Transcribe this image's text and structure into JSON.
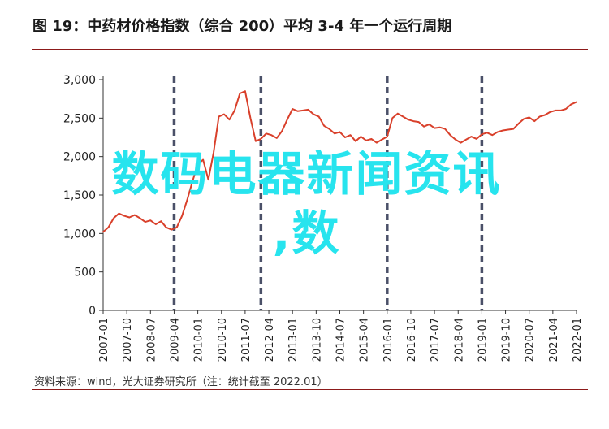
{
  "title": "图 19：中药材价格指数（综合 200）平均 3-4 年一个运行周期",
  "source": "资料来源：wind，光大证券研究所（注：统计截至 2022.01）",
  "watermark": {
    "line1": "数码电器新闻资讯",
    "line2": ",数"
  },
  "colors": {
    "line": "#d9402b",
    "divider": "#4a5068",
    "axis": "#333333",
    "accent_rule": "#8c1a1a",
    "watermark": "#27e4ee"
  },
  "chart_data": {
    "type": "line",
    "title": "",
    "xlabel": "",
    "ylabel": "",
    "ylim": [
      0,
      3000
    ],
    "yticks": [
      0,
      500,
      1000,
      1500,
      2000,
      2500,
      3000
    ],
    "ytick_labels": [
      "0",
      "500",
      "1,000",
      "1,500",
      "2,000",
      "2,500",
      "3,000"
    ],
    "xlim": [
      "2007-01",
      "2022-01"
    ],
    "xtick_labels": [
      "2007-01",
      "2007-10",
      "2008-07",
      "2009-04",
      "2010-01",
      "2010-10",
      "2011-07",
      "2012-04",
      "2013-01",
      "2013-10",
      "2014-07",
      "2015-04",
      "2016-01",
      "2016-10",
      "2017-07",
      "2018-04",
      "2019-01",
      "2019-10",
      "2020-07",
      "2021-04",
      "2022-01"
    ],
    "cycle_dividers": [
      "2009-04",
      "2012-01",
      "2016-01",
      "2019-01"
    ],
    "grid": false,
    "series": [
      {
        "x": [
          "2007-01",
          "2007-03",
          "2007-05",
          "2007-07",
          "2007-09",
          "2007-11",
          "2008-01",
          "2008-03",
          "2008-05",
          "2008-07",
          "2008-09",
          "2008-11",
          "2009-01",
          "2009-03",
          "2009-05",
          "2009-07",
          "2009-09",
          "2009-11",
          "2010-01",
          "2010-03",
          "2010-05",
          "2010-07",
          "2010-09",
          "2010-11",
          "2011-01",
          "2011-03",
          "2011-05",
          "2011-07",
          "2011-09",
          "2011-11",
          "2012-01",
          "2012-03",
          "2012-05",
          "2012-07",
          "2012-09",
          "2012-11",
          "2013-01",
          "2013-03",
          "2013-05",
          "2013-07",
          "2013-09",
          "2013-11",
          "2014-01",
          "2014-03",
          "2014-05",
          "2014-07",
          "2014-09",
          "2014-11",
          "2015-01",
          "2015-03",
          "2015-05",
          "2015-07",
          "2015-09",
          "2015-11",
          "2016-01",
          "2016-03",
          "2016-05",
          "2016-07",
          "2016-09",
          "2016-11",
          "2017-01",
          "2017-03",
          "2017-05",
          "2017-07",
          "2017-09",
          "2017-11",
          "2018-01",
          "2018-03",
          "2018-05",
          "2018-07",
          "2018-09",
          "2018-11",
          "2019-01",
          "2019-03",
          "2019-05",
          "2019-07",
          "2019-09",
          "2019-11",
          "2020-01",
          "2020-03",
          "2020-05",
          "2020-07",
          "2020-09",
          "2020-11",
          "2021-01",
          "2021-03",
          "2021-05",
          "2021-07",
          "2021-09",
          "2021-11",
          "2022-01"
        ],
        "values": [
          1020,
          1080,
          1200,
          1260,
          1230,
          1210,
          1240,
          1200,
          1150,
          1170,
          1120,
          1160,
          1080,
          1050,
          1080,
          1230,
          1440,
          1680,
          1900,
          1960,
          1700,
          2050,
          2520,
          2550,
          2480,
          2600,
          2820,
          2850,
          2500,
          2200,
          2230,
          2300,
          2280,
          2240,
          2330,
          2480,
          2620,
          2590,
          2600,
          2610,
          2550,
          2520,
          2400,
          2360,
          2300,
          2320,
          2250,
          2280,
          2200,
          2260,
          2210,
          2230,
          2180,
          2220,
          2260,
          2500,
          2560,
          2520,
          2480,
          2460,
          2450,
          2390,
          2420,
          2370,
          2380,
          2360,
          2280,
          2220,
          2180,
          2220,
          2260,
          2230,
          2290,
          2310,
          2280,
          2320,
          2340,
          2350,
          2360,
          2430,
          2490,
          2510,
          2460,
          2520,
          2540,
          2580,
          2600,
          2600,
          2620,
          2680,
          2710
        ]
      }
    ]
  }
}
